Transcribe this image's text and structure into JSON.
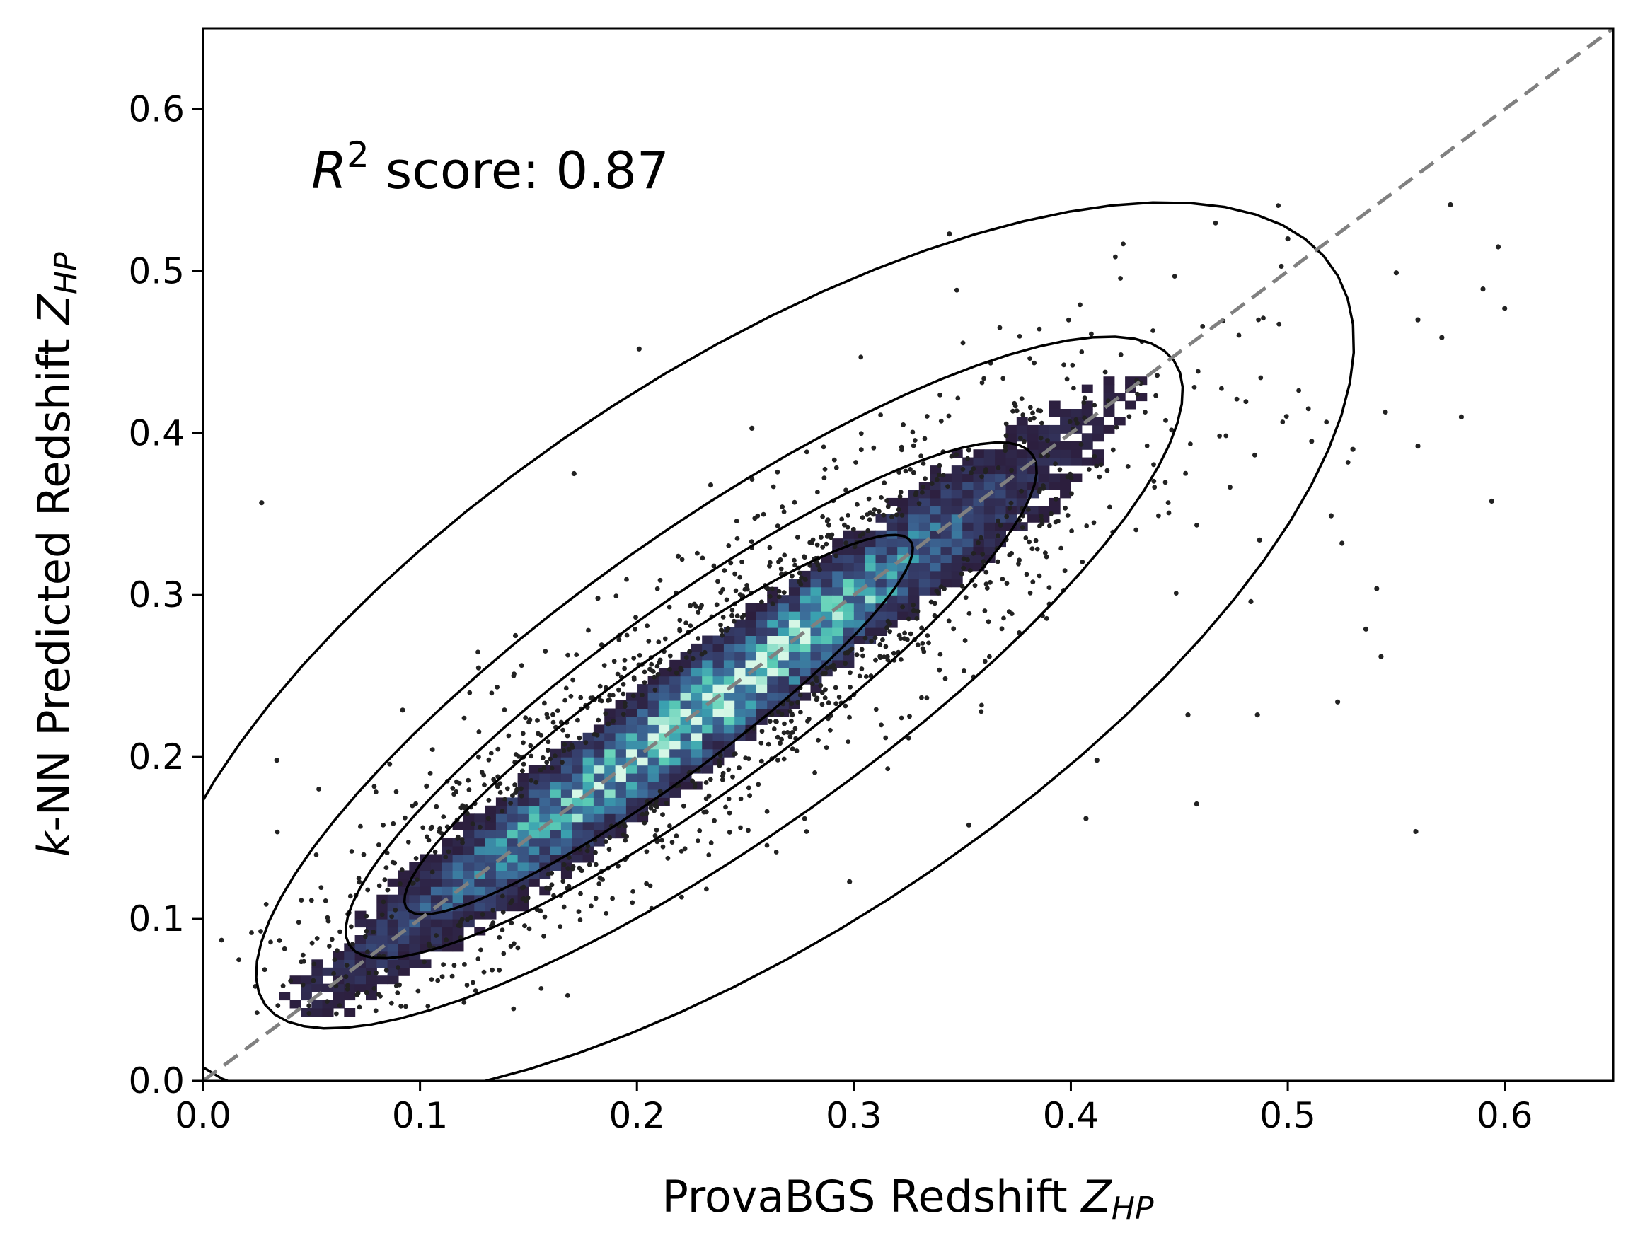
{
  "chart_data": {
    "type": "scatter",
    "subtype": "2d-histogram-with-kde-contours",
    "title": "",
    "xlabel": {
      "main": "ProvaBGS Redshift ",
      "sym": "Z",
      "sub": "HP"
    },
    "ylabel": {
      "pre": "k",
      "main": "-NN Predicted Redshift ",
      "sym": "Z",
      "sub": "HP"
    },
    "xlim": [
      0.0,
      0.65
    ],
    "ylim": [
      0.0,
      0.65
    ],
    "x_ticks": [
      "0.0",
      "0.1",
      "0.2",
      "0.3",
      "0.4",
      "0.5",
      "0.6"
    ],
    "y_ticks": [
      "0.0",
      "0.1",
      "0.2",
      "0.3",
      "0.4",
      "0.5",
      "0.6"
    ],
    "annotation": {
      "sym": "R",
      "sup": "2",
      "text": " score: 0.87"
    },
    "reference_line": {
      "style": "dashed",
      "color": "#808080",
      "from": [
        0,
        0
      ],
      "to": [
        0.65,
        0.65
      ]
    },
    "histogram": {
      "bin_size": 0.005,
      "colormap": [
        "#2c1e3d",
        "#36406e",
        "#3c6a98",
        "#3aa0b0",
        "#5fd0b6",
        "#d6f7e6"
      ]
    },
    "scatter_color": "#222222",
    "contour_color": "#000000",
    "outlier_points": [
      [
        0.027,
        0.357
      ],
      [
        0.034,
        0.198
      ],
      [
        0.092,
        0.229
      ],
      [
        0.103,
        0.182
      ],
      [
        0.127,
        0.255
      ],
      [
        0.144,
        0.275
      ],
      [
        0.171,
        0.375
      ],
      [
        0.182,
        0.298
      ],
      [
        0.201,
        0.452
      ],
      [
        0.219,
        0.324
      ],
      [
        0.234,
        0.368
      ],
      [
        0.253,
        0.403
      ],
      [
        0.298,
        0.123
      ],
      [
        0.344,
        0.523
      ],
      [
        0.353,
        0.158
      ],
      [
        0.407,
        0.162
      ],
      [
        0.412,
        0.198
      ],
      [
        0.454,
        0.226
      ],
      [
        0.458,
        0.171
      ],
      [
        0.486,
        0.226
      ],
      [
        0.497,
        0.503
      ],
      [
        0.523,
        0.234
      ],
      [
        0.525,
        0.332
      ],
      [
        0.541,
        0.304
      ],
      [
        0.536,
        0.279
      ],
      [
        0.543,
        0.262
      ],
      [
        0.559,
        0.154
      ],
      [
        0.545,
        0.413
      ],
      [
        0.56,
        0.392
      ],
      [
        0.571,
        0.459
      ],
      [
        0.575,
        0.541
      ],
      [
        0.59,
        0.489
      ],
      [
        0.594,
        0.358
      ],
      [
        0.597,
        0.515
      ],
      [
        0.6,
        0.477
      ],
      [
        0.511,
        0.395
      ],
      [
        0.487,
        0.334
      ],
      [
        0.483,
        0.296
      ],
      [
        0.52,
        0.349
      ],
      [
        0.55,
        0.499
      ],
      [
        0.58,
        0.41
      ],
      [
        0.5,
        0.52
      ],
      [
        0.56,
        0.47
      ],
      [
        0.53,
        0.39
      ]
    ]
  }
}
